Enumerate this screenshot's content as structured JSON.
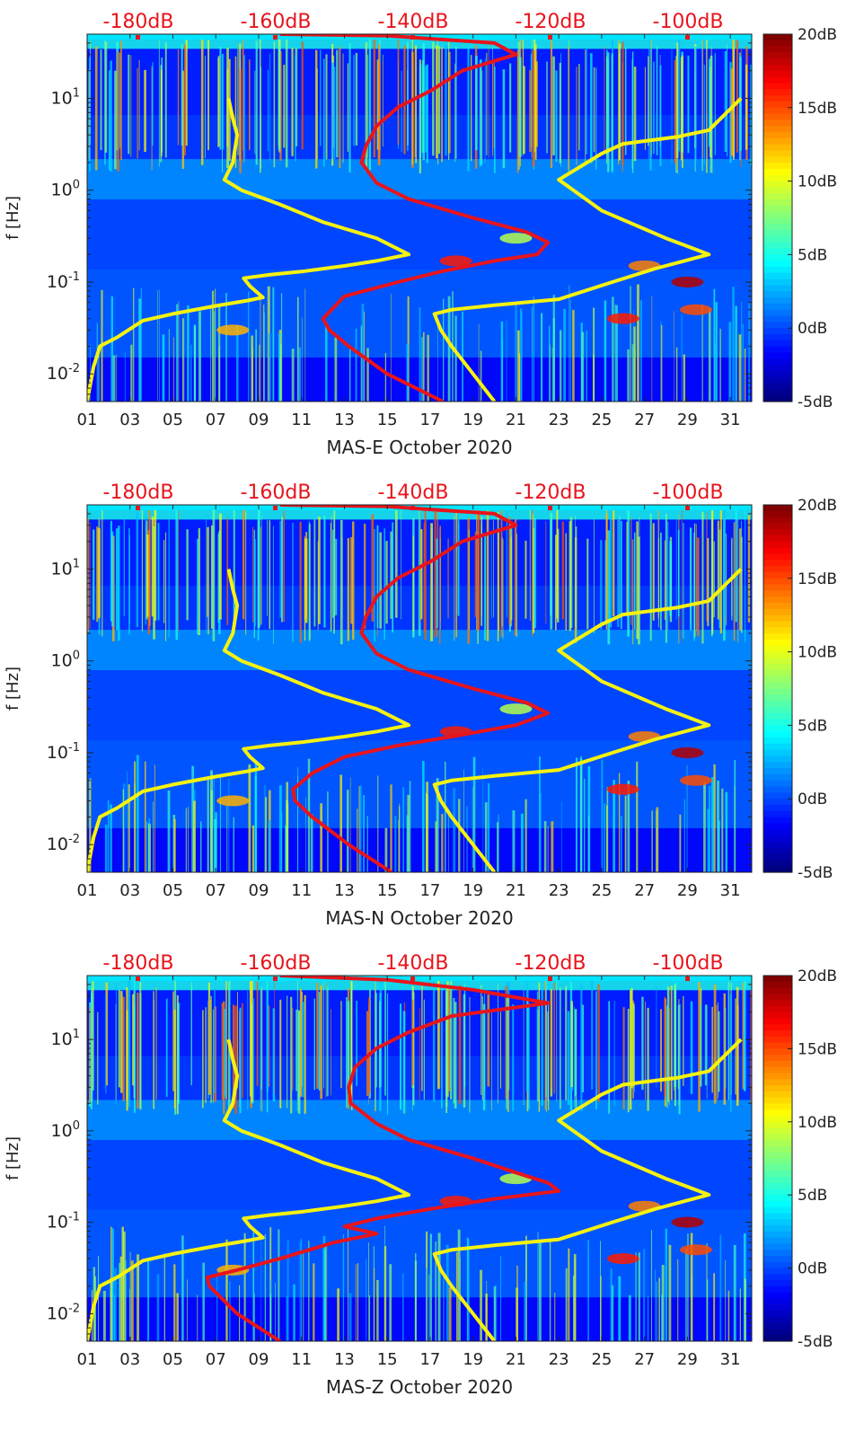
{
  "chart_data": [
    {
      "type": "heatmap",
      "title": "",
      "xlabel": "MAS-E October 2020",
      "ylabel": "f [Hz]",
      "x_ticks": [
        "01",
        "03",
        "05",
        "07",
        "09",
        "11",
        "13",
        "15",
        "17",
        "19",
        "21",
        "23",
        "25",
        "27",
        "29",
        "31"
      ],
      "xlim": [
        1,
        32
      ],
      "y_scale": "log",
      "y_ticks": [
        "10^-2",
        "10^-1",
        "10^0",
        "10^1"
      ],
      "ylim": [
        0.005,
        50
      ],
      "colorbar": {
        "ticks": [
          "-5dB",
          "0dB",
          "5dB",
          "10dB",
          "15dB",
          "20dB"
        ],
        "range": [
          -5,
          20
        ],
        "colormap": "jet"
      },
      "top_axis": {
        "ticks": [
          "-180dB",
          "-160dB",
          "-140dB",
          "-120dB",
          "-100dB"
        ],
        "color": "#e8141c"
      },
      "yellow_curves": [
        {
          "points": [
            [
              1.0,
              0.005
            ],
            [
              1.3,
              0.012
            ],
            [
              1.6,
              0.02
            ],
            [
              2.4,
              0.025
            ],
            [
              3.6,
              0.038
            ],
            [
              5,
              0.045
            ],
            [
              7,
              0.055
            ],
            [
              8.5,
              0.063
            ],
            [
              9.2,
              0.068
            ],
            [
              8.6,
              0.09
            ],
            [
              8.3,
              0.11
            ],
            [
              9.5,
              0.12
            ],
            [
              11,
              0.13
            ],
            [
              13,
              0.15
            ],
            [
              14.5,
              0.17
            ],
            [
              16,
              0.2
            ],
            [
              14.5,
              0.3
            ],
            [
              12,
              0.45
            ],
            [
              10,
              0.7
            ],
            [
              8.2,
              1.0
            ],
            [
              7.4,
              1.3
            ],
            [
              7.8,
              2.0
            ],
            [
              8.0,
              4.0
            ],
            [
              7.8,
              6.0
            ],
            [
              7.6,
              10
            ]
          ]
        },
        {
          "points": [
            [
              20.0,
              0.005
            ],
            [
              19.0,
              0.01
            ],
            [
              18.0,
              0.02
            ],
            [
              17.5,
              0.03
            ],
            [
              17.2,
              0.045
            ],
            [
              18,
              0.05
            ],
            [
              20,
              0.056
            ],
            [
              23,
              0.065
            ],
            [
              25.5,
              0.1
            ],
            [
              27.5,
              0.14
            ],
            [
              30,
              0.2
            ],
            [
              28,
              0.3
            ],
            [
              25,
              0.6
            ],
            [
              23,
              1.3
            ],
            [
              25,
              2.5
            ],
            [
              26,
              3.2
            ],
            [
              28.5,
              3.8
            ],
            [
              30,
              4.5
            ],
            [
              31.5,
              10
            ]
          ]
        }
      ],
      "red_curve": {
        "points": [
          [
            17.6,
            0.005
          ],
          [
            15.0,
            0.01
          ],
          [
            13.2,
            0.02
          ],
          [
            12.3,
            0.03
          ],
          [
            12.0,
            0.04
          ],
          [
            13,
            0.07
          ],
          [
            15.5,
            0.1
          ],
          [
            17.5,
            0.13
          ],
          [
            20,
            0.17
          ],
          [
            22,
            0.2
          ],
          [
            22.5,
            0.27
          ],
          [
            21.5,
            0.35
          ],
          [
            19,
            0.5
          ],
          [
            16,
            0.8
          ],
          [
            14.5,
            1.2
          ],
          [
            13.8,
            2
          ],
          [
            14,
            3
          ],
          [
            14.5,
            5
          ],
          [
            15.5,
            8
          ],
          [
            17,
            12
          ],
          [
            18.5,
            20
          ],
          [
            21,
            30
          ],
          [
            20,
            40
          ],
          [
            15,
            48
          ],
          [
            10,
            50
          ]
        ]
      }
    },
    {
      "type": "heatmap",
      "title": "",
      "xlabel": "MAS-N October 2020",
      "ylabel": "f [Hz]",
      "x_ticks": [
        "01",
        "03",
        "05",
        "07",
        "09",
        "11",
        "13",
        "15",
        "17",
        "19",
        "21",
        "23",
        "25",
        "27",
        "29",
        "31"
      ],
      "xlim": [
        1,
        32
      ],
      "y_scale": "log",
      "y_ticks": [
        "10^-2",
        "10^-1",
        "10^0",
        "10^1"
      ],
      "ylim": [
        0.005,
        50
      ],
      "colorbar": {
        "ticks": [
          "-5dB",
          "0dB",
          "5dB",
          "10dB",
          "15dB",
          "20dB"
        ],
        "range": [
          -5,
          20
        ],
        "colormap": "jet"
      },
      "top_axis": {
        "ticks": [
          "-180dB",
          "-160dB",
          "-140dB",
          "-120dB",
          "-100dB"
        ],
        "color": "#e8141c"
      },
      "yellow_curves": [
        {
          "points": [
            [
              1.0,
              0.005
            ],
            [
              1.3,
              0.012
            ],
            [
              1.6,
              0.02
            ],
            [
              2.4,
              0.025
            ],
            [
              3.6,
              0.038
            ],
            [
              5,
              0.045
            ],
            [
              7,
              0.055
            ],
            [
              8.5,
              0.063
            ],
            [
              9.2,
              0.068
            ],
            [
              8.6,
              0.09
            ],
            [
              8.3,
              0.11
            ],
            [
              9.5,
              0.12
            ],
            [
              11,
              0.13
            ],
            [
              13,
              0.15
            ],
            [
              14.5,
              0.17
            ],
            [
              16,
              0.2
            ],
            [
              14.5,
              0.3
            ],
            [
              12,
              0.45
            ],
            [
              10,
              0.7
            ],
            [
              8.2,
              1.0
            ],
            [
              7.4,
              1.3
            ],
            [
              7.8,
              2.0
            ],
            [
              8.0,
              4.0
            ],
            [
              7.8,
              6.0
            ],
            [
              7.6,
              10
            ]
          ]
        },
        {
          "points": [
            [
              20.0,
              0.005
            ],
            [
              19.0,
              0.01
            ],
            [
              18.0,
              0.02
            ],
            [
              17.5,
              0.03
            ],
            [
              17.2,
              0.045
            ],
            [
              18,
              0.05
            ],
            [
              20,
              0.056
            ],
            [
              23,
              0.065
            ],
            [
              25.5,
              0.1
            ],
            [
              27.5,
              0.14
            ],
            [
              30,
              0.2
            ],
            [
              28,
              0.3
            ],
            [
              25,
              0.6
            ],
            [
              23,
              1.3
            ],
            [
              25,
              2.5
            ],
            [
              26,
              3.2
            ],
            [
              28.5,
              3.8
            ],
            [
              30,
              4.5
            ],
            [
              31.5,
              10
            ]
          ]
        }
      ],
      "red_curve": {
        "points": [
          [
            15.2,
            0.005
          ],
          [
            13.2,
            0.01
          ],
          [
            11.5,
            0.02
          ],
          [
            10.7,
            0.03
          ],
          [
            10.6,
            0.04
          ],
          [
            11.5,
            0.06
          ],
          [
            13,
            0.09
          ],
          [
            15.5,
            0.12
          ],
          [
            18,
            0.15
          ],
          [
            21,
            0.2
          ],
          [
            22.5,
            0.27
          ],
          [
            21.5,
            0.35
          ],
          [
            19,
            0.5
          ],
          [
            16,
            0.8
          ],
          [
            14.5,
            1.2
          ],
          [
            13.8,
            2
          ],
          [
            14,
            3
          ],
          [
            14.5,
            5
          ],
          [
            15.5,
            8
          ],
          [
            17,
            12
          ],
          [
            18.5,
            20
          ],
          [
            21,
            30
          ],
          [
            20,
            40
          ],
          [
            15,
            48
          ],
          [
            10,
            50
          ]
        ]
      }
    },
    {
      "type": "heatmap",
      "title": "",
      "xlabel": "MAS-Z October 2020",
      "ylabel": "f [Hz]",
      "x_ticks": [
        "01",
        "03",
        "05",
        "07",
        "09",
        "11",
        "13",
        "15",
        "17",
        "19",
        "21",
        "23",
        "25",
        "27",
        "29",
        "31"
      ],
      "xlim": [
        1,
        32
      ],
      "y_scale": "log",
      "y_ticks": [
        "10^-2",
        "10^-1",
        "10^0",
        "10^1"
      ],
      "ylim": [
        0.005,
        50
      ],
      "colorbar": {
        "ticks": [
          "-5dB",
          "0dB",
          "5dB",
          "10dB",
          "15dB",
          "20dB"
        ],
        "range": [
          -5,
          20
        ],
        "colormap": "jet"
      },
      "top_axis": {
        "ticks": [
          "-180dB",
          "-160dB",
          "-140dB",
          "-120dB",
          "-100dB"
        ],
        "color": "#e8141c"
      },
      "yellow_curves": [
        {
          "points": [
            [
              1.0,
              0.005
            ],
            [
              1.3,
              0.012
            ],
            [
              1.6,
              0.02
            ],
            [
              2.4,
              0.025
            ],
            [
              3.6,
              0.038
            ],
            [
              5,
              0.045
            ],
            [
              7,
              0.055
            ],
            [
              8.5,
              0.063
            ],
            [
              9.2,
              0.068
            ],
            [
              8.6,
              0.09
            ],
            [
              8.3,
              0.11
            ],
            [
              9.5,
              0.12
            ],
            [
              11,
              0.13
            ],
            [
              13,
              0.15
            ],
            [
              14.5,
              0.17
            ],
            [
              16,
              0.2
            ],
            [
              14.5,
              0.3
            ],
            [
              12,
              0.45
            ],
            [
              10,
              0.7
            ],
            [
              8.2,
              1.0
            ],
            [
              7.4,
              1.3
            ],
            [
              7.8,
              2.0
            ],
            [
              8.0,
              4.0
            ],
            [
              7.8,
              6.0
            ],
            [
              7.6,
              10
            ]
          ]
        },
        {
          "points": [
            [
              20.0,
              0.005
            ],
            [
              19.0,
              0.01
            ],
            [
              18.0,
              0.02
            ],
            [
              17.5,
              0.03
            ],
            [
              17.2,
              0.045
            ],
            [
              18,
              0.05
            ],
            [
              20,
              0.056
            ],
            [
              23,
              0.065
            ],
            [
              25.5,
              0.1
            ],
            [
              27.5,
              0.14
            ],
            [
              30,
              0.2
            ],
            [
              28,
              0.3
            ],
            [
              25,
              0.6
            ],
            [
              23,
              1.3
            ],
            [
              25,
              2.5
            ],
            [
              26,
              3.2
            ],
            [
              28.5,
              3.8
            ],
            [
              30,
              4.5
            ],
            [
              31.5,
              10
            ]
          ]
        }
      ],
      "red_curve": {
        "points": [
          [
            10.0,
            0.005
          ],
          [
            8.0,
            0.01
          ],
          [
            6.7,
            0.02
          ],
          [
            6.6,
            0.025
          ],
          [
            8,
            0.03
          ],
          [
            10,
            0.04
          ],
          [
            12.5,
            0.06
          ],
          [
            14.5,
            0.075
          ],
          [
            13,
            0.09
          ],
          [
            14.5,
            0.11
          ],
          [
            17,
            0.14
          ],
          [
            20,
            0.18
          ],
          [
            23,
            0.22
          ],
          [
            22.5,
            0.27
          ],
          [
            21,
            0.35
          ],
          [
            19,
            0.5
          ],
          [
            16,
            0.8
          ],
          [
            14.5,
            1.2
          ],
          [
            13.3,
            2
          ],
          [
            13.2,
            3
          ],
          [
            13.5,
            5
          ],
          [
            14.5,
            8
          ],
          [
            16,
            12
          ],
          [
            18,
            18
          ],
          [
            22.5,
            25
          ],
          [
            19,
            35
          ],
          [
            15,
            45
          ],
          [
            10,
            50
          ]
        ]
      }
    }
  ]
}
